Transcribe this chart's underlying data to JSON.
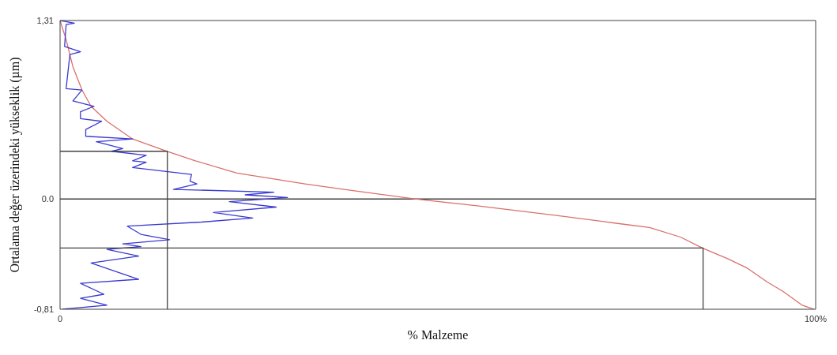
{
  "chart_data": {
    "type": "line",
    "xlabel": "% Malzeme",
    "ylabel": "Ortalama değer üzerindeki yükseklik (µm)",
    "xlim": [
      0,
      100
    ],
    "xticks": [
      {
        "value": 0,
        "label": "0"
      },
      {
        "value": 100,
        "label": "100%"
      }
    ],
    "ylim": [
      -0.81,
      1.31
    ],
    "yticks": [
      {
        "value": -0.81,
        "label": "-0,81"
      },
      {
        "value": 0,
        "label": "0.0"
      },
      {
        "value": 1.31,
        "label": "1,31"
      }
    ],
    "grid": false,
    "legend": false,
    "marker": "none",
    "line_style": "solid",
    "ref_lines": [
      {
        "axis": "y",
        "value": 0,
        "color": "#404040"
      }
    ],
    "series": [
      {
        "color": "#d9706b",
        "x": [
          0,
          0.8,
          1.7,
          2.9,
          4.1,
          6.2,
          9.6,
          14.1,
          17.9,
          23.4,
          32.4,
          37.6,
          46.9,
          55.2,
          65.5,
          73.8,
          78.0,
          82.1,
          85.0,
          88.4,
          91.0,
          93.6,
          95.7,
          98.2,
          99.8
        ],
        "values": [
          1.31,
          1.17,
          0.97,
          0.8,
          0.68,
          0.57,
          0.44,
          0.35,
          0.28,
          0.19,
          0.11,
          0.07,
          0,
          -0.05,
          -0.12,
          -0.18,
          -0.21,
          -0.28,
          -0.36,
          -0.44,
          -0.51,
          -0.61,
          -0.68,
          -0.78,
          -0.81
        ]
      },
      {
        "color": "#3a3ad0",
        "x": [
          0,
          1.9,
          0.8,
          0.6,
          2.7,
          1.3,
          0.8,
          2.9,
          1.7,
          4.5,
          2.7,
          2.7,
          5.5,
          3.4,
          3.4,
          9.6,
          4.8,
          8.3,
          6.8,
          11.4,
          9.6,
          11.4,
          9.6,
          17.4,
          17.2,
          18.1,
          15.0,
          28.3,
          24.5,
          30.1,
          22.4,
          28.6,
          20.3,
          25.5,
          18.7,
          8.9,
          10.7,
          14.5,
          8.3,
          10.7,
          6.2,
          10.4,
          4.1,
          10.4,
          2.7,
          5.8,
          2.7,
          6.2,
          0.3
        ],
        "values": [
          1.31,
          1.29,
          1.28,
          1.12,
          1.08,
          1.06,
          0.81,
          0.8,
          0.72,
          0.68,
          0.64,
          0.59,
          0.57,
          0.51,
          0.46,
          0.44,
          0.42,
          0.37,
          0.35,
          0.32,
          0.28,
          0.27,
          0.23,
          0.18,
          0.13,
          0.11,
          0.07,
          0.05,
          0.03,
          0.01,
          -0.02,
          -0.06,
          -0.1,
          -0.14,
          -0.17,
          -0.2,
          -0.26,
          -0.3,
          -0.33,
          -0.35,
          -0.37,
          -0.42,
          -0.47,
          -0.59,
          -0.62,
          -0.7,
          -0.73,
          -0.78,
          -0.81
        ]
      },
      {
        "color": "#404040",
        "x": [
          0,
          14.2,
          14.2
        ],
        "values": [
          0.35,
          0.35,
          -0.81
        ]
      },
      {
        "color": "#404040",
        "x": [
          0,
          85.1,
          85.1
        ],
        "values": [
          -0.36,
          -0.36,
          -0.81
        ]
      }
    ]
  }
}
